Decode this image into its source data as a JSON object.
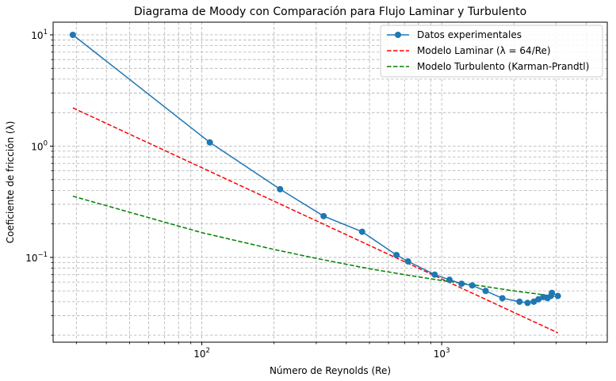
{
  "chart_data": {
    "type": "line",
    "title": "Diagrama de Moody con Comparación para Flujo Laminar y Turbulento",
    "xlabel": "Número de Reynolds (Re)",
    "ylabel": "Coeficiente de fricción (λ)",
    "xscale": "log",
    "yscale": "log",
    "xlim": [
      24,
      4900
    ],
    "ylim": [
      0.0173,
      13
    ],
    "x_ticks": [
      {
        "value": 100,
        "base": "10",
        "exp": "2"
      },
      {
        "value": 1000,
        "base": "10",
        "exp": "3"
      }
    ],
    "y_ticks": [
      {
        "value": 0.1,
        "base": "10",
        "exp": "−1"
      },
      {
        "value": 1,
        "base": "10",
        "exp": "0"
      },
      {
        "value": 10,
        "base": "10",
        "exp": "1"
      }
    ],
    "grid": true,
    "legend_position": "top-right",
    "series": [
      {
        "name": "Datos experimentales",
        "style": "line-marker",
        "color": "#1f77b4",
        "x": [
          29,
          108,
          212,
          322,
          466,
          648,
          724,
          935,
          1078,
          1210,
          1340,
          1525,
          1790,
          2110,
          2280,
          2420,
          2530,
          2650,
          2760,
          2850,
          2880,
          3050
        ],
        "y": [
          10.0,
          1.08,
          0.41,
          0.235,
          0.17,
          0.105,
          0.092,
          0.07,
          0.063,
          0.058,
          0.056,
          0.05,
          0.043,
          0.04,
          0.039,
          0.04,
          0.042,
          0.044,
          0.043,
          0.045,
          0.048,
          0.045
        ]
      },
      {
        "name": "Modelo Laminar (λ = 64/Re)",
        "style": "dashed",
        "color": "#ff0000",
        "x": [
          29,
          3050
        ],
        "y": [
          2.207,
          0.02098
        ]
      },
      {
        "name": "Modelo Turbulento (Karman-Prandtl)",
        "style": "dashed",
        "color": "#008000",
        "x": [
          29,
          100,
          200,
          300,
          500,
          700,
          1000,
          1500,
          2000,
          2500,
          3050
        ],
        "y": [
          0.355,
          0.167,
          0.118,
          0.098,
          0.079,
          0.07,
          0.062,
          0.055,
          0.05,
          0.047,
          0.044
        ]
      }
    ]
  }
}
